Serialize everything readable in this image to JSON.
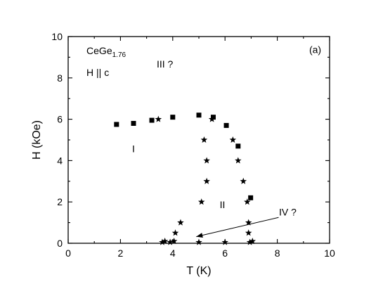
{
  "chart_data": {
    "type": "scatter",
    "xlabel": "T (K)",
    "ylabel": "H (kOe)",
    "xlim": [
      0,
      10
    ],
    "ylim": [
      0,
      10
    ],
    "xticks": [
      "0",
      "2",
      "4",
      "6",
      "8",
      "10"
    ],
    "yticks": [
      "0",
      "2",
      "4",
      "6",
      "8",
      "10"
    ],
    "grid": false,
    "sample": {
      "base": "CeGe",
      "subscript": "1.76"
    },
    "field_direction": "H || c",
    "panel_label": "(a)",
    "regions": [
      {
        "label": "I",
        "x": 2.5,
        "y": 4.4
      },
      {
        "label": "II",
        "x": 5.9,
        "y": 1.7
      },
      {
        "label": "III ?",
        "x": 3.7,
        "y": 8.5
      },
      {
        "label": "IV ?",
        "x": 8.4,
        "y": 1.35
      }
    ],
    "arrow": {
      "from": [
        8.05,
        1.25
      ],
      "to": [
        4.9,
        0.32
      ]
    },
    "series": [
      {
        "marker": "square",
        "color": "#000000",
        "points": [
          [
            1.85,
            5.75
          ],
          [
            2.5,
            5.8
          ],
          [
            3.2,
            5.95
          ],
          [
            4.0,
            6.1
          ],
          [
            5.0,
            6.2
          ],
          [
            5.55,
            6.1
          ],
          [
            6.05,
            5.7
          ],
          [
            6.5,
            4.7
          ],
          [
            6.98,
            2.2
          ]
        ]
      },
      {
        "marker": "star",
        "color": "#000000",
        "points": [
          [
            3.45,
            6.0
          ],
          [
            5.5,
            6.0
          ],
          [
            5.2,
            5.0
          ],
          [
            5.3,
            4.0
          ],
          [
            5.3,
            3.0
          ],
          [
            5.1,
            2.0
          ],
          [
            6.3,
            5.0
          ],
          [
            6.5,
            4.0
          ],
          [
            6.7,
            3.0
          ],
          [
            6.85,
            2.0
          ],
          [
            4.3,
            1.0
          ],
          [
            4.1,
            0.5
          ],
          [
            6.9,
            1.0
          ],
          [
            6.9,
            0.5
          ],
          [
            3.6,
            0.05
          ],
          [
            3.7,
            0.1
          ],
          [
            3.9,
            0.05
          ],
          [
            4.05,
            0.1
          ],
          [
            5.0,
            0.05
          ],
          [
            6.0,
            0.05
          ],
          [
            6.95,
            0.05
          ],
          [
            7.05,
            0.1
          ]
        ]
      }
    ]
  }
}
